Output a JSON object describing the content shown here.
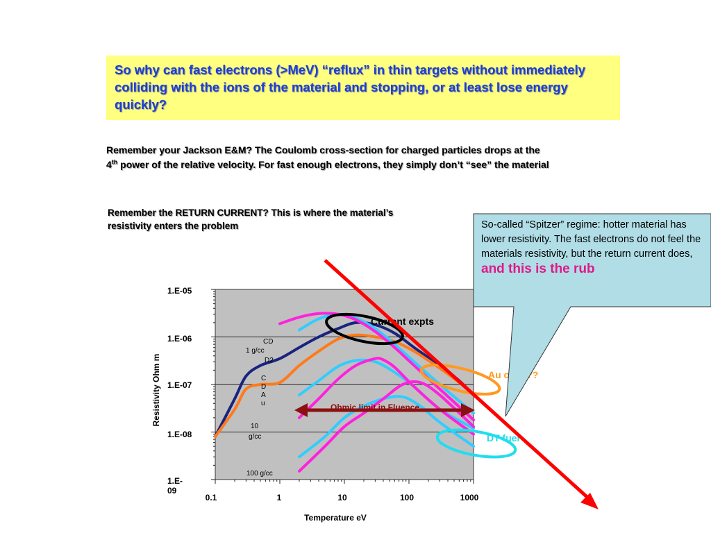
{
  "header_box": {
    "question": "So why can fast electrons (>MeV) “reflux” in thin targets without immediately colliding with the ions of the material and stopping, or at least lose energy quickly?"
  },
  "jackson_note": {
    "line1": "Remember your Jackson E&M?  The Coulomb cross-section for charged particles drops at the",
    "line2_prefix": "4",
    "line2_sup": "th",
    "line2_rest": " power of the relative velocity.  For fast enough electrons, they simply don’t “see” the material"
  },
  "return_current_note": {
    "text": "Remember the RETURN CURRENT?  This is where the material’s resistivity enters the problem"
  },
  "callout": {
    "text": "So-called “Spitzer” regime: hotter material has lower resistivity.  The fast electrons do not feel the materials resistivity, but the return current does, ",
    "highlight": "and this is the rub"
  },
  "chart_data": {
    "type": "line",
    "xlabel": "Temperature eV",
    "ylabel": "Resistivity Ohm m",
    "x_scale": "log",
    "y_scale": "log",
    "xlim": [
      0.1,
      1000
    ],
    "ylim": [
      1e-09,
      1e-05
    ],
    "x_ticks": [
      "0.1",
      "1",
      "10",
      "100",
      "1000"
    ],
    "y_ticks": [
      "1.E-05",
      "1.E-06",
      "1.E-07",
      "1.E-08",
      "1.E-09"
    ],
    "grid": "horizontal",
    "series_colors": {
      "CD": "#1a237e",
      "C": "#ff7a1a",
      "DT": "#33ccff",
      "Au": "#ff22dd"
    },
    "series": [
      {
        "key": "CD",
        "x": [
          0.1,
          0.2,
          0.3,
          0.5,
          1,
          2,
          4,
          8,
          15,
          30,
          60,
          120,
          300,
          600,
          1000
        ],
        "y": [
          8e-09,
          5e-08,
          1.5e-07,
          2.5e-07,
          3.5e-07,
          6e-07,
          1e-06,
          1.5e-06,
          2e-06,
          1.8e-06,
          1.2e-06,
          6e-07,
          2.5e-07,
          1.2e-07,
          6e-08
        ]
      },
      {
        "key": "C",
        "x": [
          0.1,
          0.2,
          0.3,
          0.5,
          1,
          2,
          4,
          8,
          15,
          30,
          60,
          120,
          300,
          600,
          1000
        ],
        "y": [
          8e-09,
          3e-08,
          8e-08,
          1e-07,
          1.1e-07,
          2.5e-07,
          5e-07,
          9e-07,
          1.1e-06,
          1e-06,
          8e-07,
          5e-07,
          2.2e-07,
          1.1e-07,
          6e-08
        ]
      },
      {
        "key": "DT",
        "x": [
          2,
          4,
          8,
          15,
          30,
          60,
          120,
          300,
          1000
        ],
        "y": [
          1.4e-06,
          2.4e-06,
          3e-06,
          2.5e-06,
          1.5e-06,
          7e-07,
          3e-07,
          1e-07,
          2.5e-08
        ]
      },
      {
        "key": "Au",
        "x": [
          1,
          2,
          4,
          8,
          15,
          30,
          60,
          120,
          300,
          1000
        ],
        "y": [
          1.9e-06,
          2.6e-06,
          3.1e-06,
          3e-06,
          2.3e-06,
          1.3e-06,
          6e-07,
          2.5e-07,
          8e-08,
          1.8e-08
        ]
      },
      {
        "key": "DT",
        "x": [
          2,
          4,
          8,
          15,
          30,
          60,
          120,
          300,
          1000
        ],
        "y": [
          6e-08,
          1.2e-07,
          2.4e-07,
          3.2e-07,
          3e-07,
          1.8e-07,
          9e-08,
          3e-08,
          1.2e-08
        ]
      },
      {
        "key": "Au",
        "x": [
          2,
          4,
          8,
          15,
          30,
          40,
          60,
          120,
          300,
          1000
        ],
        "y": [
          2e-08,
          5e-08,
          1.3e-07,
          2.5e-07,
          3.5e-07,
          3.3e-07,
          2.3e-07,
          9e-08,
          3e-08,
          9e-09
        ]
      },
      {
        "key": "DT",
        "x": [
          2,
          5,
          10,
          20,
          40,
          80,
          150,
          300,
          1000
        ],
        "y": [
          3e-09,
          8e-09,
          2e-08,
          3.5e-08,
          5e-08,
          5.5e-08,
          3.5e-08,
          1.6e-08,
          5e-09
        ]
      },
      {
        "key": "Au",
        "x": [
          2,
          5,
          10,
          20,
          40,
          80,
          150,
          300,
          1000
        ],
        "y": [
          1.5e-09,
          5e-09,
          1.3e-08,
          2.5e-08,
          5e-08,
          1e-07,
          1.1e-07,
          6e-08,
          1.3e-08
        ]
      }
    ],
    "curve_labels": [
      "CD",
      "1 g/cc",
      "D2",
      "C",
      "D",
      "A",
      "u",
      "10",
      "g/cc",
      "100 g/cc"
    ],
    "annotations": {
      "current_expts": "Current expts",
      "ohmic_limit": "Ohmic limit in Fluence",
      "au_label": "Au cold ??",
      "dt_label": "DT fuel"
    },
    "colors": {
      "plot_background": "#c0c0c0",
      "ohmic_arrow": "#8b1010",
      "big_arrow": "#ff0000",
      "current_expts_ring": "#000000",
      "au_ring": "#ff9922",
      "dt_ring": "#22ddee"
    }
  }
}
